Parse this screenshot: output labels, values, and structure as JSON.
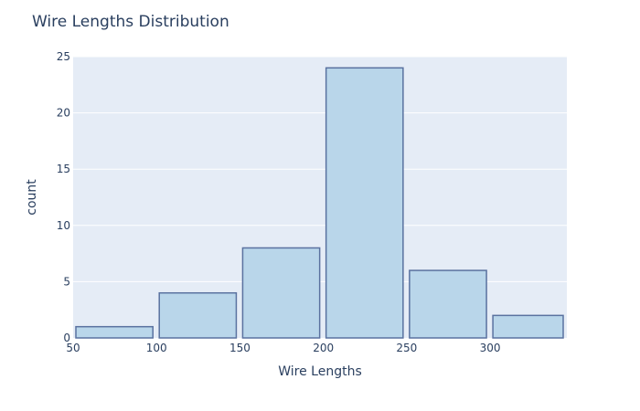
{
  "chart_data": {
    "type": "bar",
    "title": "Wire Lengths Distribution",
    "xlabel": "Wire Lengths",
    "ylabel": "count",
    "bins": [
      {
        "x0": 50,
        "x1": 100,
        "count": 1
      },
      {
        "x0": 100,
        "x1": 150,
        "count": 4
      },
      {
        "x0": 150,
        "x1": 200,
        "count": 8
      },
      {
        "x0": 200,
        "x1": 250,
        "count": 24
      },
      {
        "x0": 250,
        "x1": 300,
        "count": 6
      },
      {
        "x0": 300,
        "x1": 350,
        "count": 2
      }
    ],
    "xlim": [
      50,
      346
    ],
    "ylim": [
      0,
      25
    ],
    "xticks": [
      "50",
      "100",
      "150",
      "200",
      "250",
      "300"
    ],
    "yticks": [
      "0",
      "5",
      "10",
      "15",
      "20",
      "25"
    ],
    "grid": true,
    "colors": {
      "plot_bg": "#e5ecf6",
      "grid": "#ffffff",
      "bar_fill": "#b9d6ea",
      "bar_stroke": "#5a72a0",
      "text": "#2a3f5f"
    }
  }
}
